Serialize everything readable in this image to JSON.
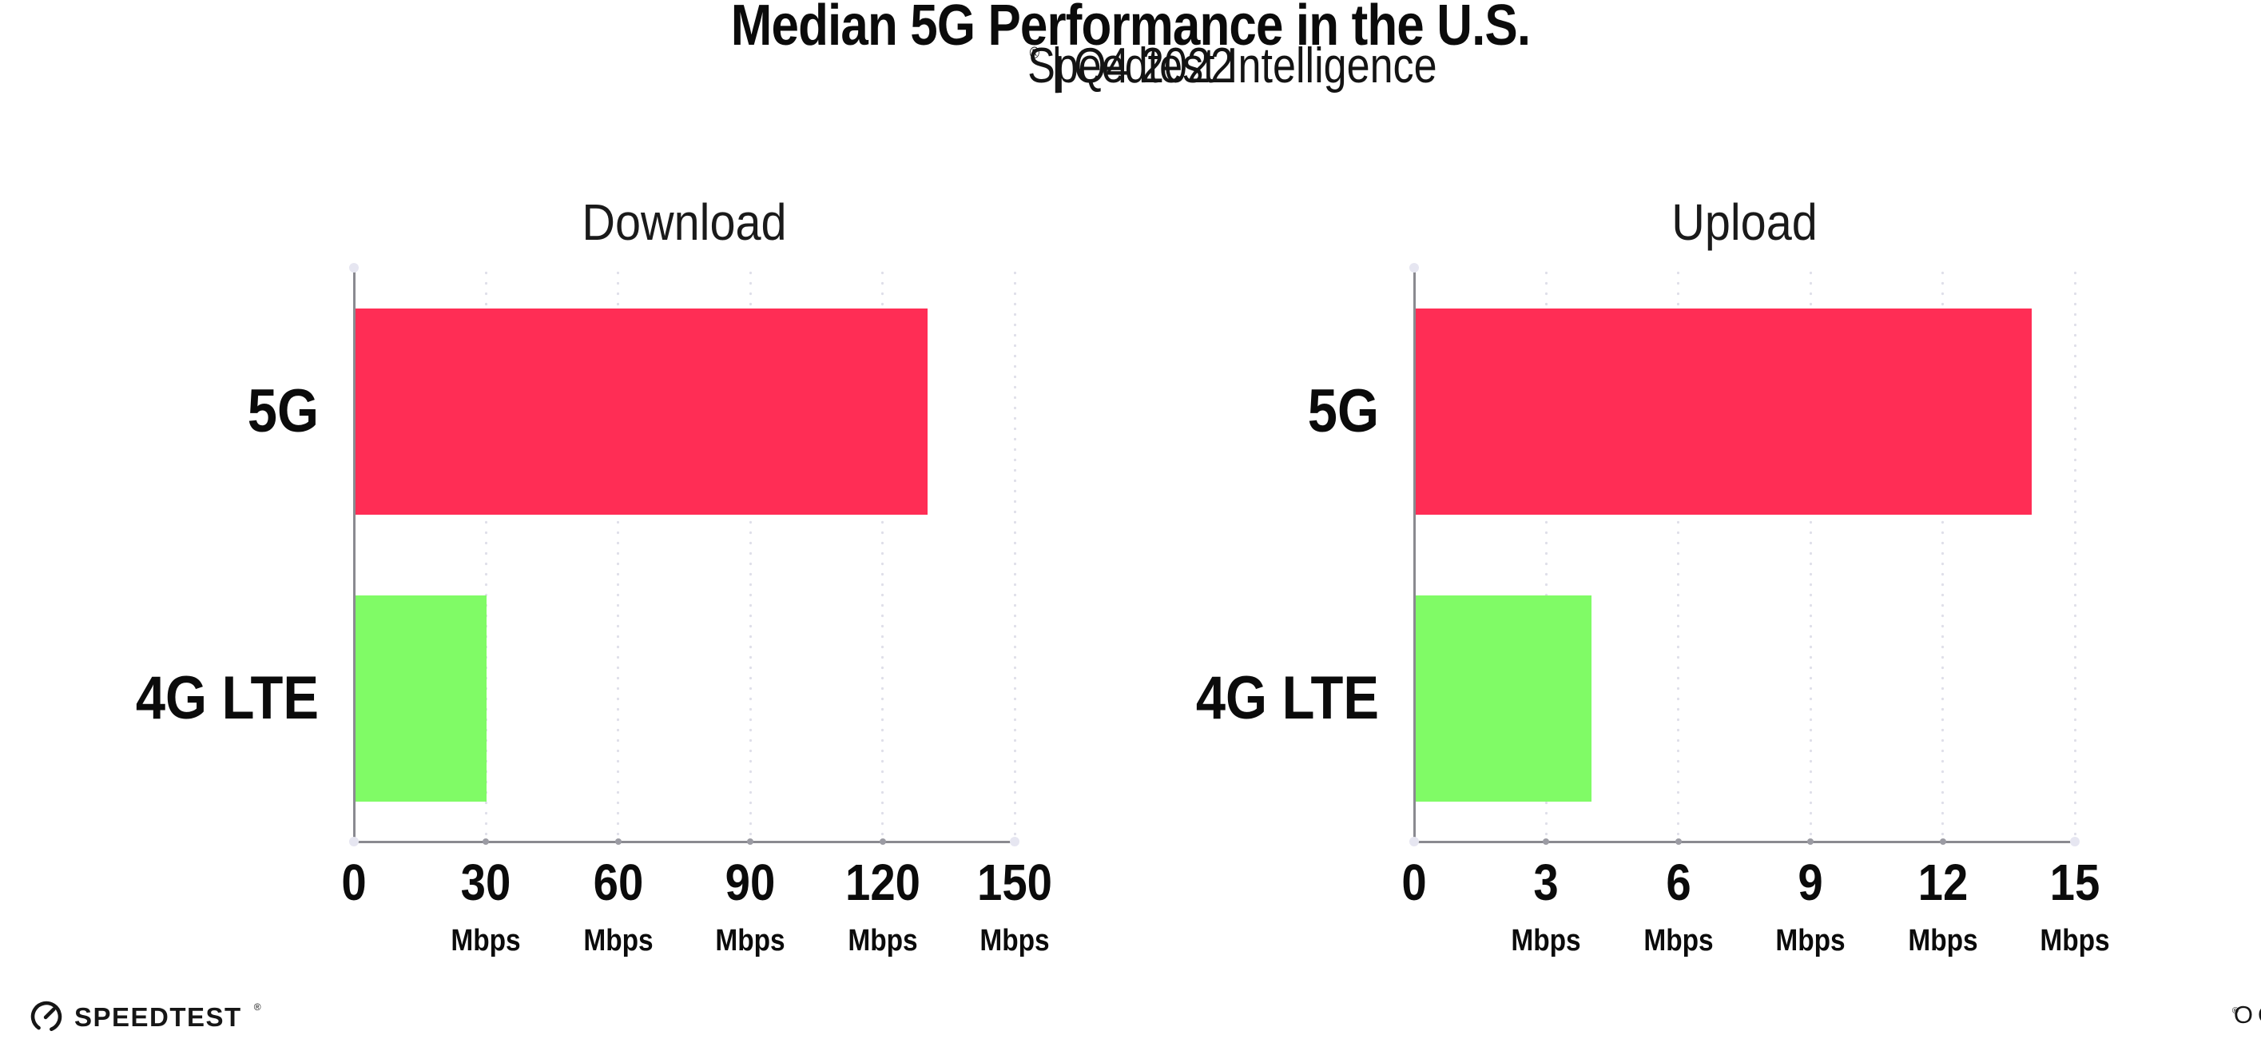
{
  "header": {
    "title": "Median 5G Performance in the U.S.",
    "subtitle": {
      "brand": "Speedtest Intelligence",
      "registered_mark": "®",
      "rest": "| Q4 2022"
    }
  },
  "chart_data": [
    {
      "type": "bar",
      "orientation": "horizontal",
      "title": "Download",
      "categories": [
        "5G",
        "4G LTE"
      ],
      "values": [
        130,
        30
      ],
      "value_unit": "Mbps",
      "xlim": [
        0,
        150
      ],
      "xticks": [
        0,
        30,
        60,
        90,
        120,
        150
      ],
      "tick_unit_label": "Mbps",
      "bar_colors": [
        "#ff2d55",
        "#80fb66"
      ],
      "grid": "vertical-dotted",
      "legend": "none"
    },
    {
      "type": "bar",
      "orientation": "horizontal",
      "title": "Upload",
      "categories": [
        "5G",
        "4G LTE"
      ],
      "values": [
        14,
        4
      ],
      "value_unit": "Mbps",
      "xlim": [
        0,
        15
      ],
      "xticks": [
        0,
        3,
        6,
        9,
        12,
        15
      ],
      "tick_unit_label": "Mbps",
      "bar_colors": [
        "#ff2d55",
        "#80fb66"
      ],
      "grid": "vertical-dotted",
      "legend": "none"
    }
  ],
  "footer": {
    "speedtest_logo_text": "SPEEDTEST",
    "speedtest_mark": "®",
    "ookla_logo_text": "OOKLA",
    "ookla_mark": "®"
  },
  "colors": {
    "bar_5g": "#ff2d55",
    "bar_4g_lte": "#80fb66",
    "axis": "#8a8a90",
    "grid_dot": "#dfdfe9",
    "text": "#0b0b0b"
  }
}
